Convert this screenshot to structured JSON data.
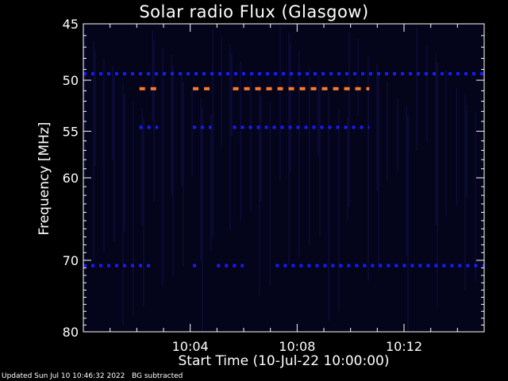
{
  "footer": {
    "updated": "Updated Sun Jul 10 10:46:32 2022",
    "mode": "BG subtracted"
  },
  "chart_data": {
    "type": "heatmap",
    "title": "Solar radio Flux (Glasgow)",
    "xlabel": "Start Time (10-Jul-22 10:00:00)",
    "ylabel": "Frequency [MHz]",
    "xlim_minutes": [
      0,
      15
    ],
    "ylim": [
      45,
      80
    ],
    "y_scale": "log",
    "x_ticks": [
      {
        "minute": 4,
        "label": "10:04"
      },
      {
        "minute": 8,
        "label": "10:08"
      },
      {
        "minute": 12,
        "label": "10:12"
      }
    ],
    "y_ticks": [
      45,
      50,
      55,
      60,
      70,
      80
    ],
    "colors": {
      "background": "#000000",
      "plot_bg": "#04041a",
      "axis": "#ffffff",
      "weak": "#0a0a6e",
      "medium": "#1a1aff",
      "strong": "#ff7a2a"
    },
    "bands": [
      {
        "freq": 49.4,
        "level": "medium",
        "segments": [
          [
            0.0,
            15.0
          ]
        ]
      },
      {
        "freq": 50.8,
        "level": "strong",
        "segments": [
          [
            2.1,
            2.8
          ],
          [
            4.1,
            4.8
          ],
          [
            5.6,
            10.7
          ]
        ]
      },
      {
        "freq": 54.6,
        "level": "medium",
        "segments": [
          [
            2.1,
            2.8
          ],
          [
            4.1,
            4.8
          ],
          [
            5.6,
            10.7
          ]
        ]
      },
      {
        "freq": 70.7,
        "level": "medium",
        "segments": [
          [
            0.0,
            2.5
          ],
          [
            4.1,
            4.3
          ],
          [
            5.0,
            6.0
          ],
          [
            7.2,
            15.0
          ]
        ]
      }
    ]
  }
}
